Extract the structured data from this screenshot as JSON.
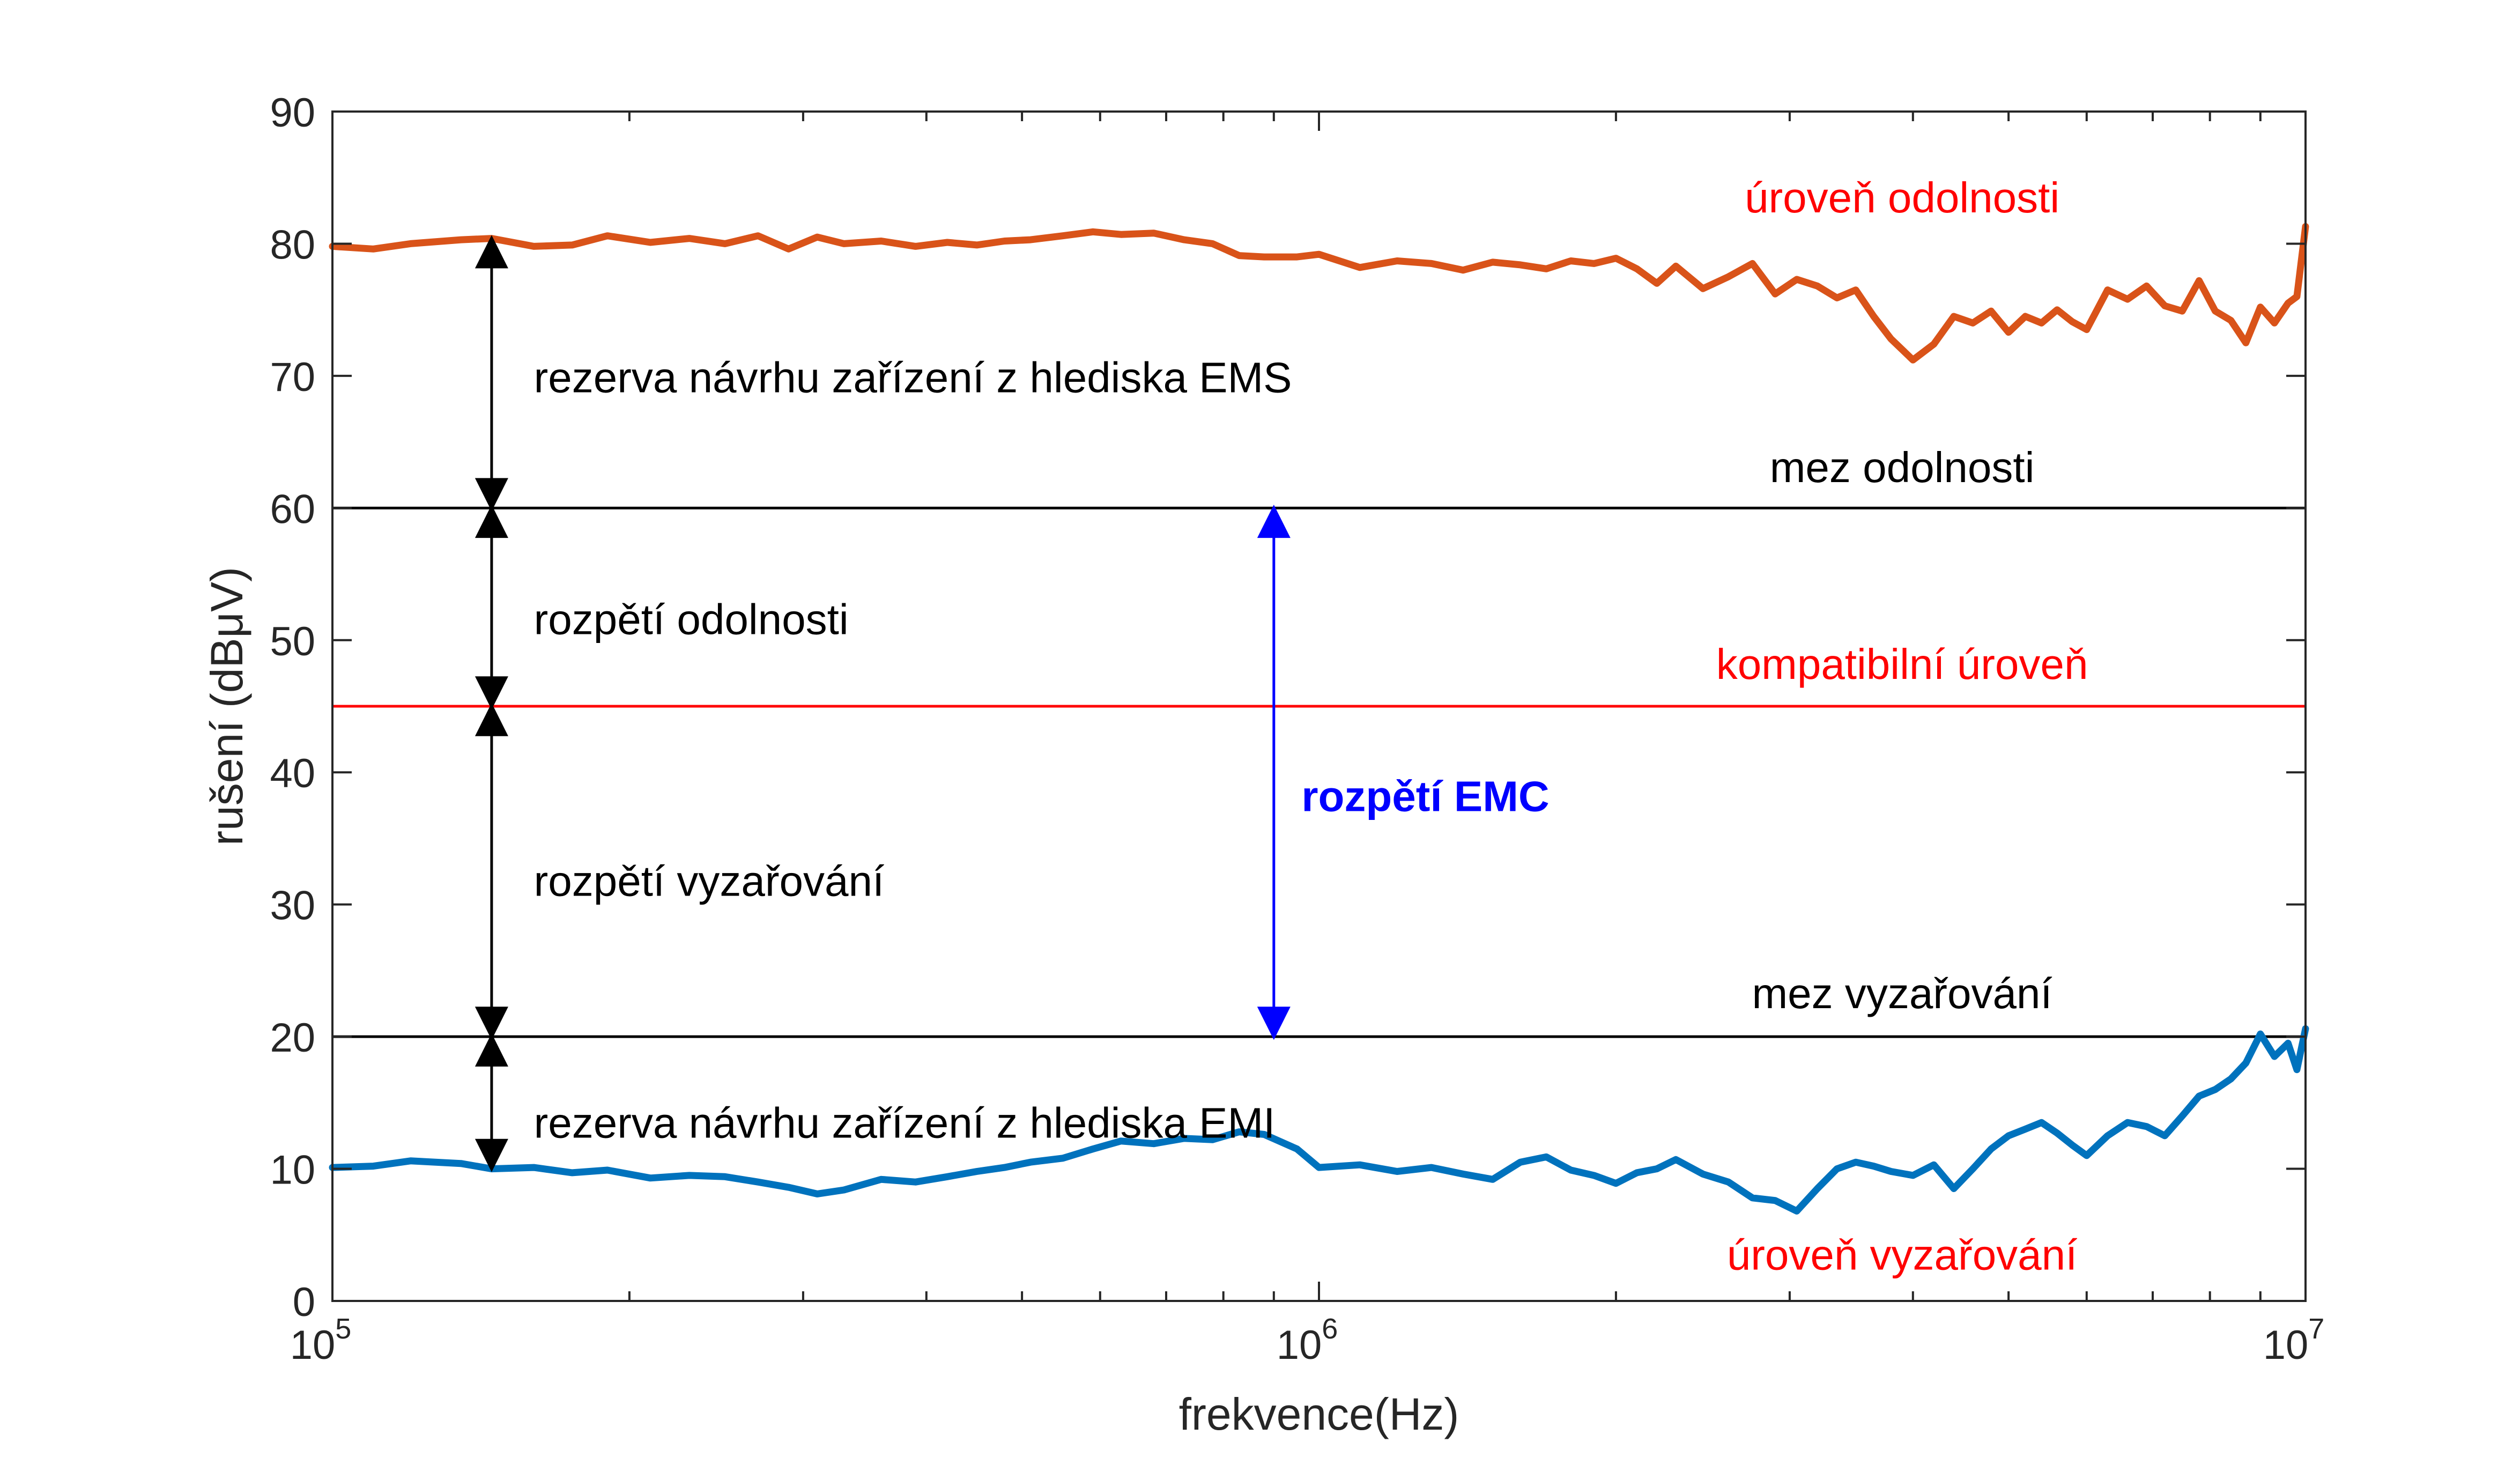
{
  "chart_data": {
    "type": "line",
    "xlabel": "frekvence(Hz)",
    "ylabel": "rušení (dBμV)",
    "xscale": "log",
    "xlim": [
      100000,
      10000000
    ],
    "ylim": [
      0,
      90
    ],
    "yticks": [
      0,
      10,
      20,
      30,
      40,
      50,
      60,
      70,
      80,
      90
    ],
    "xticks": [
      {
        "value": 100000,
        "base": "10",
        "exp": "5"
      },
      {
        "value": 1000000,
        "base": "10",
        "exp": "6"
      },
      {
        "value": 10000000,
        "base": "10",
        "exp": "7"
      }
    ],
    "grid": false,
    "series": [
      {
        "label_ref": "uroven_odolnosti",
        "color": "#D95319",
        "x": [
          100000,
          110000,
          120000,
          135000,
          145000,
          160000,
          175000,
          190000,
          210000,
          230000,
          250000,
          270000,
          290000,
          310000,
          330000,
          360000,
          390000,
          420000,
          450000,
          480000,
          510000,
          550000,
          590000,
          630000,
          680000,
          730000,
          780000,
          830000,
          880000,
          950000,
          1000000,
          1100000,
          1200000,
          1300000,
          1400000,
          1500000,
          1600000,
          1700000,
          1800000,
          1900000,
          2000000,
          2100000,
          2200000,
          2300000,
          2450000,
          2600000,
          2750000,
          2900000,
          3050000,
          3200000,
          3350000,
          3500000,
          3650000,
          3800000,
          4000000,
          4200000,
          4400000,
          4600000,
          4800000,
          5000000,
          5200000,
          5400000,
          5600000,
          5800000,
          6000000,
          6300000,
          6600000,
          6900000,
          7200000,
          7500000,
          7800000,
          8100000,
          8400000,
          8700000,
          9000000,
          9300000,
          9600000,
          9800000,
          10000000
        ],
        "y": [
          79.8,
          79.6,
          80.0,
          80.3,
          80.4,
          79.8,
          79.9,
          80.6,
          80.1,
          80.4,
          80.0,
          80.6,
          79.6,
          80.5,
          80.0,
          80.2,
          79.8,
          80.1,
          79.9,
          80.2,
          80.3,
          80.6,
          80.9,
          80.7,
          80.8,
          80.3,
          80.0,
          79.1,
          79.0,
          79.0,
          79.2,
          78.2,
          78.7,
          78.5,
          78.0,
          78.6,
          78.4,
          78.1,
          78.7,
          78.5,
          78.9,
          78.1,
          77.0,
          78.3,
          76.6,
          77.5,
          78.5,
          76.2,
          77.3,
          76.8,
          75.9,
          76.5,
          74.5,
          72.8,
          71.2,
          72.4,
          74.5,
          74.0,
          74.9,
          73.3,
          74.5,
          74.0,
          75.0,
          74.1,
          73.5,
          76.5,
          75.8,
          76.8,
          75.3,
          74.9,
          77.2,
          74.9,
          74.2,
          72.5,
          75.2,
          74.0,
          75.5,
          76.0,
          81.3
        ]
      },
      {
        "label_ref": "uroven_vyzarovani",
        "color": "#0072BD",
        "x": [
          100000,
          110000,
          120000,
          135000,
          145000,
          160000,
          175000,
          190000,
          210000,
          230000,
          250000,
          270000,
          290000,
          310000,
          330000,
          360000,
          390000,
          420000,
          450000,
          480000,
          510000,
          550000,
          590000,
          630000,
          680000,
          730000,
          780000,
          830000,
          880000,
          950000,
          1000000,
          1100000,
          1200000,
          1300000,
          1400000,
          1500000,
          1600000,
          1700000,
          1800000,
          1900000,
          2000000,
          2100000,
          2200000,
          2300000,
          2450000,
          2600000,
          2750000,
          2900000,
          3050000,
          3200000,
          3350000,
          3500000,
          3650000,
          3800000,
          4000000,
          4200000,
          4400000,
          4600000,
          4800000,
          5000000,
          5200000,
          5400000,
          5600000,
          5800000,
          6000000,
          6300000,
          6600000,
          6900000,
          7200000,
          7500000,
          7800000,
          8100000,
          8400000,
          8700000,
          9000000,
          9300000,
          9600000,
          9800000,
          10000000
        ],
        "y": [
          10.1,
          10.2,
          10.6,
          10.4,
          10.0,
          10.1,
          9.7,
          9.9,
          9.3,
          9.5,
          9.4,
          9.0,
          8.6,
          8.1,
          8.4,
          9.2,
          9.0,
          9.4,
          9.8,
          10.1,
          10.5,
          10.8,
          11.5,
          12.1,
          11.9,
          12.3,
          12.2,
          12.8,
          12.6,
          11.5,
          10.1,
          10.3,
          9.8,
          10.1,
          9.6,
          9.2,
          10.5,
          10.9,
          9.9,
          9.5,
          8.9,
          9.7,
          10.0,
          10.7,
          9.6,
          9.0,
          7.8,
          7.6,
          6.8,
          8.5,
          10.0,
          10.5,
          10.2,
          9.8,
          9.5,
          10.3,
          8.5,
          10.0,
          11.5,
          12.5,
          13.0,
          13.5,
          12.7,
          11.8,
          11.0,
          12.5,
          13.5,
          13.2,
          12.5,
          14.0,
          15.5,
          16.0,
          16.8,
          18.0,
          20.2,
          18.5,
          19.5,
          17.5,
          20.6
        ]
      }
    ],
    "hlines": [
      {
        "y": 60,
        "color": "#000000",
        "label_ref": "mez_odolnosti"
      },
      {
        "y": 45,
        "color": "#FF0000",
        "label_ref": "kompatibilni_uroven"
      },
      {
        "y": 20,
        "color": "#000000",
        "label_ref": "mez_vyzarovani"
      }
    ],
    "arrows": [
      {
        "x": 145000,
        "y1": 80.4,
        "y2": 60,
        "color": "#000000"
      },
      {
        "x": 145000,
        "y1": 60,
        "y2": 45,
        "color": "#000000"
      },
      {
        "x": 145000,
        "y1": 45,
        "y2": 20,
        "color": "#000000"
      },
      {
        "x": 145000,
        "y1": 20,
        "y2": 10.0,
        "color": "#000000"
      },
      {
        "x": 900000,
        "y1": 60,
        "y2": 20,
        "color": "#0000FF"
      }
    ],
    "annotations": {
      "uroven_odolnosti": {
        "text": "úroveň odolnosti",
        "x": 3900000,
        "y": 83.5,
        "color": "#FF0000",
        "weight": "normal",
        "anchor": "middle"
      },
      "rezerva_ems": {
        "text": "rezerva návrhu zařízení z hlediska EMS",
        "x": 160000,
        "y": 69.9,
        "color": "#000000",
        "weight": "normal",
        "anchor": "start"
      },
      "mez_odolnosti": {
        "text": "mez odolnosti",
        "x": 3900000,
        "y": 63.1,
        "color": "#000000",
        "weight": "normal",
        "anchor": "middle"
      },
      "rozpeti_odolnosti": {
        "text": "rozpětí odolnosti",
        "x": 160000,
        "y": 51.6,
        "color": "#000000",
        "weight": "normal",
        "anchor": "start"
      },
      "kompatibilni_uroven": {
        "text": "kompatibilní úroveň",
        "x": 3900000,
        "y": 48.2,
        "color": "#FF0000",
        "weight": "normal",
        "anchor": "middle"
      },
      "rozpeti_emc": {
        "text": "rozpětí EMC",
        "x": 960000,
        "y": 38.2,
        "color": "#0000FF",
        "weight": "bold",
        "anchor": "start"
      },
      "rozpeti_vyzarovani": {
        "text": "rozpětí vyzařování",
        "x": 160000,
        "y": 31.8,
        "color": "#000000",
        "weight": "normal",
        "anchor": "start"
      },
      "mez_vyzarovani": {
        "text": "mez vyzařování",
        "x": 3900000,
        "y": 23.3,
        "color": "#000000",
        "weight": "normal",
        "anchor": "middle"
      },
      "rezerva_emi": {
        "text": "rezerva návrhu zařízení z hlediska EMI",
        "x": 160000,
        "y": 13.5,
        "color": "#000000",
        "weight": "normal",
        "anchor": "start"
      },
      "uroven_vyzarovani": {
        "text": "úroveň vyzařování",
        "x": 3900000,
        "y": 3.5,
        "color": "#FF0000",
        "weight": "normal",
        "anchor": "middle"
      }
    }
  }
}
